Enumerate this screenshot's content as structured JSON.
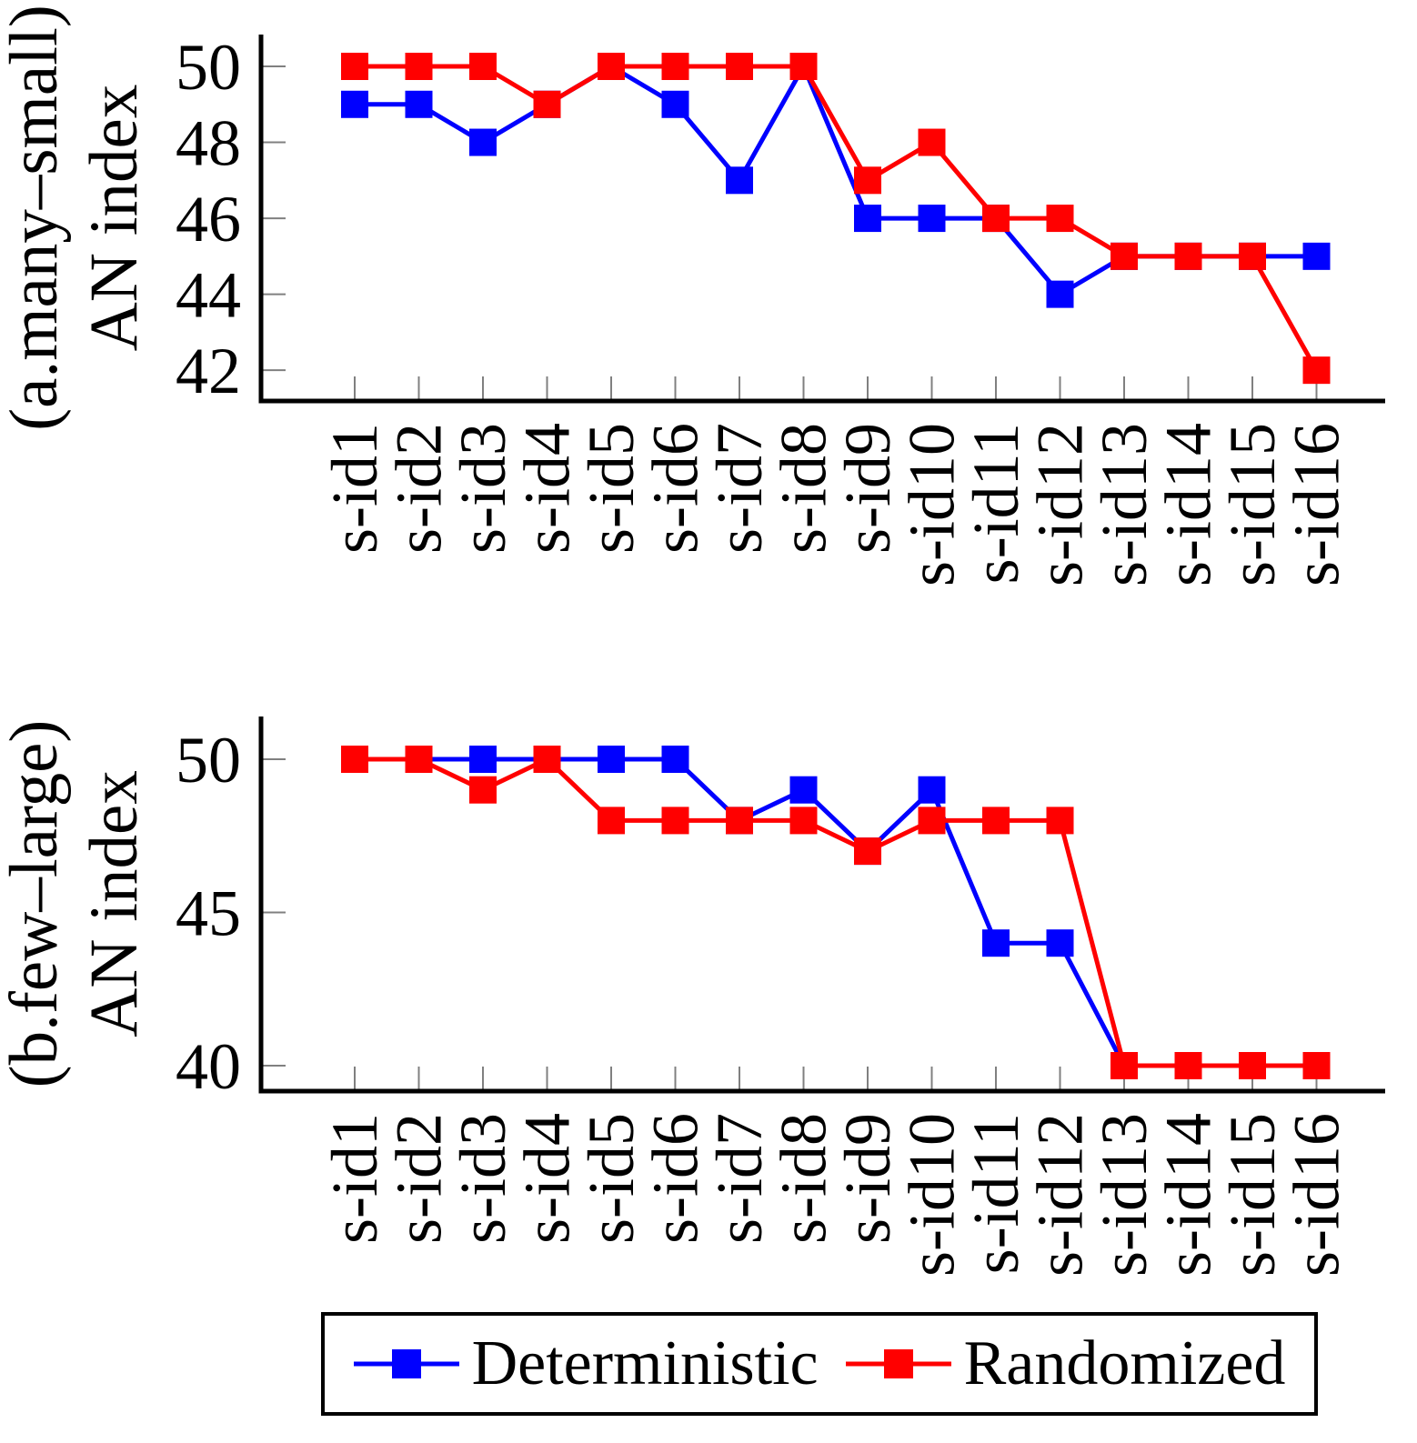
{
  "figure": {
    "background": "#ffffff",
    "series_colors": {
      "deterministic": "#0000ff",
      "randomized": "#ff0000"
    },
    "axis_color": "#000000",
    "tick_color": "#808080"
  },
  "legend": {
    "items": [
      {
        "label": "Deterministic",
        "color": "#0000ff"
      },
      {
        "label": "Randomized",
        "color": "#ff0000"
      }
    ]
  },
  "chart_data": [
    {
      "id": "a",
      "type": "line",
      "ylabel_lines": [
        "(a.many–small)",
        "AN index"
      ],
      "categories": [
        "s-id1",
        "s-id2",
        "s-id3",
        "s-id4",
        "s-id5",
        "s-id6",
        "s-id7",
        "s-id8",
        "s-id9",
        "s-id10",
        "s-id11",
        "s-id12",
        "s-id13",
        "s-id14",
        "s-id15",
        "s-id16"
      ],
      "yticks": [
        50,
        48,
        46,
        44,
        42
      ],
      "ylim": [
        41.2,
        50.8
      ],
      "grid": false,
      "legend_position": "below-figure",
      "series": [
        {
          "name": "Deterministic",
          "color": "#0000ff",
          "marker": "square",
          "values": [
            49,
            49,
            48,
            49,
            50,
            49,
            47,
            50,
            46,
            46,
            46,
            44,
            45,
            45,
            45,
            45
          ]
        },
        {
          "name": "Randomized",
          "color": "#ff0000",
          "marker": "square",
          "values": [
            50,
            50,
            50,
            49,
            50,
            50,
            50,
            50,
            47,
            48,
            46,
            46,
            45,
            45,
            45,
            42
          ]
        }
      ]
    },
    {
      "id": "b",
      "type": "line",
      "ylabel_lines": [
        "(b.few–large)",
        "AN index"
      ],
      "categories": [
        "s-id1",
        "s-id2",
        "s-id3",
        "s-id4",
        "s-id5",
        "s-id6",
        "s-id7",
        "s-id8",
        "s-id9",
        "s-id10",
        "s-id11",
        "s-id12",
        "s-id13",
        "s-id14",
        "s-id15",
        "s-id16"
      ],
      "yticks": [
        50,
        45,
        40
      ],
      "ylim": [
        39.2,
        51.3
      ],
      "grid": false,
      "legend_position": "below-figure",
      "series": [
        {
          "name": "Deterministic",
          "color": "#0000ff",
          "marker": "square",
          "values": [
            50,
            50,
            50,
            50,
            50,
            50,
            48,
            49,
            47,
            49,
            44,
            44,
            40,
            40,
            40,
            40
          ]
        },
        {
          "name": "Randomized",
          "color": "#ff0000",
          "marker": "square",
          "values": [
            50,
            50,
            49,
            50,
            48,
            48,
            48,
            48,
            47,
            48,
            48,
            48,
            40,
            40,
            40,
            40
          ]
        }
      ]
    }
  ]
}
